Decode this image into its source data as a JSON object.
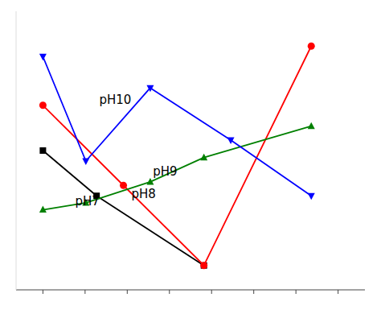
{
  "chart_data": {
    "type": "line",
    "series": [
      {
        "color": "black",
        "marker": "square",
        "x": [
          1,
          2,
          4
        ],
        "values": [
          7.5,
          6.2,
          4.2
        ]
      },
      {
        "color": "red",
        "marker": "circle",
        "x": [
          1,
          2.5,
          4,
          6
        ],
        "values": [
          8.8,
          6.5,
          4.2,
          10.5
        ]
      },
      {
        "color": "green",
        "marker": "triangle-up",
        "x": [
          1,
          1.8,
          3.0,
          4,
          6
        ],
        "values": [
          5.8,
          6.0,
          6.6,
          7.3,
          8.2
        ]
      },
      {
        "color": "blue",
        "marker": "triangle-down",
        "x": [
          1,
          1.8,
          3.0,
          4.5,
          6
        ],
        "values": [
          10.2,
          7.2,
          9.3,
          7.8,
          6.2
        ]
      }
    ],
    "annotations": [
      {
        "text": "pH7",
        "x": 1.6,
        "y": 6.05
      },
      {
        "text": "pH8",
        "x": 2.65,
        "y": 6.25
      },
      {
        "text": "pH9",
        "x": 3.05,
        "y": 6.9
      },
      {
        "text": "pH10",
        "x": 2.05,
        "y": 8.95
      }
    ],
    "xlim": [
      0.5,
      7.0
    ],
    "ylim": [
      3.5,
      11.5
    ],
    "xticks": [
      1,
      1.7857142857142856,
      2.571428571428571,
      3.357142857142857,
      4.142857142857142,
      4.928571428571428,
      5.714285714285714,
      6.5
    ],
    "tick_labels": false,
    "grid": false
  }
}
